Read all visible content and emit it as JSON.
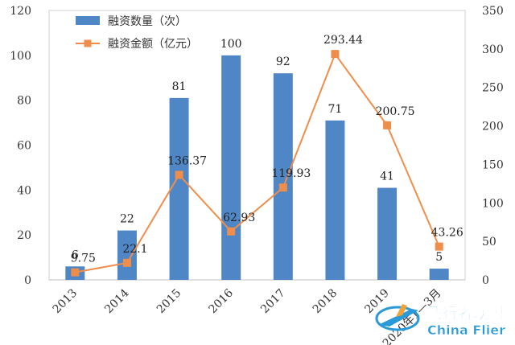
{
  "chart_data": {
    "type": "bar",
    "categories": [
      "2013",
      "2014",
      "2015",
      "2016",
      "2017",
      "2018",
      "2019",
      "2020年1—3月"
    ],
    "series": [
      {
        "name": "融资数量（次）",
        "type": "bar",
        "axis": "left",
        "values": [
          6,
          22,
          81,
          100,
          92,
          71,
          41,
          5
        ],
        "labels": [
          "6",
          "22",
          "81",
          "100",
          "92",
          "71",
          "41",
          "5"
        ],
        "color": "#4f86c6"
      },
      {
        "name": "融资金额（亿元）",
        "type": "line",
        "axis": "right",
        "values": [
          9.75,
          22.1,
          136.37,
          62.93,
          119.93,
          293.44,
          200.75,
          43.26
        ],
        "labels": [
          "9.75",
          "22.1",
          "136.37",
          "62.93",
          "119.93",
          "293.44",
          "200.75",
          "43.26"
        ],
        "color": "#ef8d4b"
      }
    ],
    "left_axis": {
      "ylim": [
        0,
        120
      ],
      "ticks": [
        "0",
        "20",
        "40",
        "60",
        "80",
        "100",
        "120"
      ]
    },
    "right_axis": {
      "ylim": [
        0,
        350
      ],
      "ticks": [
        "0",
        "50",
        "100",
        "150",
        "200",
        "250",
        "300",
        "350"
      ]
    },
    "title": "",
    "xlabel": "",
    "ylabel": "",
    "grid": false,
    "legend": "top-left"
  },
  "watermark": {
    "text": "飞行者联盟",
    "subtext": "China Flier",
    "color": "#2a9bd8"
  }
}
